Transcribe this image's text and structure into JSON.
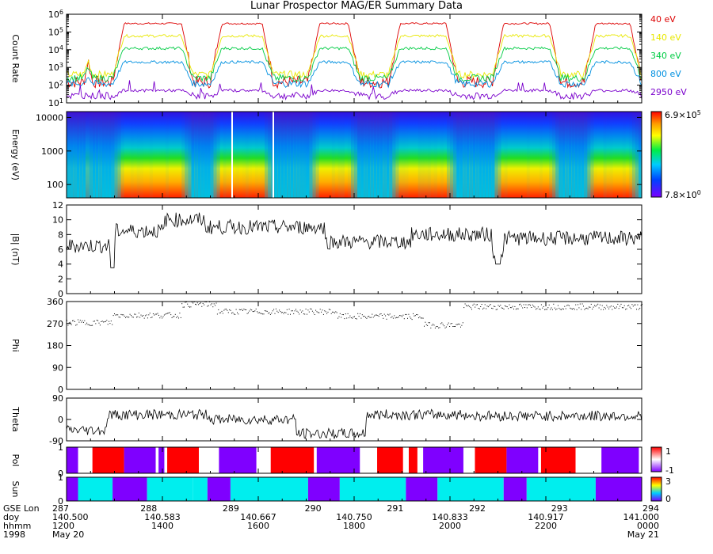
{
  "title": "Lunar Prospector MAG/ER Summary Data",
  "x_rows": [
    {
      "label": "GSE Lon",
      "values": [
        "287",
        "288",
        "289",
        "290",
        "291",
        "292",
        "293",
        "294"
      ]
    },
    {
      "label": "doy",
      "values": [
        "140.500",
        "140.583",
        "140.667",
        "140.750",
        "140.833",
        "140.917",
        "141.000"
      ]
    },
    {
      "label": "hhmm",
      "values": [
        "1200",
        "1400",
        "1600",
        "1800",
        "2000",
        "2200",
        "0000"
      ]
    },
    {
      "label": "1998",
      "values": [
        "May 20",
        "May 21"
      ]
    }
  ],
  "chart_data": [
    {
      "type": "line",
      "name": "count-rate",
      "ylabel": "Count Rate",
      "yscale": "log",
      "ylim": [
        10,
        1000000
      ],
      "yticks": [
        "10^1",
        "10^2",
        "10^3",
        "10^4",
        "10^5",
        "10^6"
      ],
      "series": [
        {
          "name": "40 eV",
          "color": "#dd0000",
          "high": 300000,
          "low": 150
        },
        {
          "name": "140 eV",
          "color": "#e8e800",
          "high": 60000,
          "low": 400
        },
        {
          "name": "340 eV",
          "color": "#00cc44",
          "high": 12000,
          "low": 250
        },
        {
          "name": "800 eV",
          "color": "#0090e0",
          "high": 2000,
          "low": 120
        },
        {
          "name": "2950 eV",
          "color": "#7a00cc",
          "high": 50,
          "low": 25
        }
      ]
    },
    {
      "type": "heatmap",
      "name": "energy-spectrogram",
      "ylabel": "Energy (eV)",
      "yscale": "log",
      "ylim": [
        40,
        15000
      ],
      "yticks": [
        "100",
        "1000",
        "10000"
      ],
      "colorbar": {
        "max": "6.9×10^5",
        "min": "7.8×10^0"
      }
    },
    {
      "type": "line",
      "name": "b-magnitude",
      "ylabel": "|B| (nT)",
      "ylim": [
        0,
        12
      ],
      "yticks": [
        "0",
        "2",
        "4",
        "6",
        "8",
        "10",
        "12"
      ]
    },
    {
      "type": "scatter",
      "name": "phi",
      "ylabel": "Phi",
      "ylim": [
        0,
        360
      ],
      "yticks": [
        "0",
        "90",
        "180",
        "270",
        "360"
      ]
    },
    {
      "type": "line",
      "name": "theta",
      "ylabel": "Theta",
      "ylim": [
        -90,
        90
      ],
      "yticks": [
        "-90",
        "0",
        "90"
      ]
    },
    {
      "type": "bar",
      "name": "pol",
      "ylabel": "Pol",
      "ylim": [
        0,
        1
      ],
      "yticks": [
        "0",
        "1"
      ],
      "colorbar": {
        "max": "1",
        "min": "-1"
      }
    },
    {
      "type": "bar",
      "name": "sun",
      "ylabel": "Sun",
      "ylim": [
        0,
        1
      ],
      "yticks": [
        "0",
        "1"
      ],
      "colorbar": {
        "max": "3",
        "min": "0"
      }
    }
  ],
  "colors": {
    "spectrogram_low": "#7a00cc",
    "spectrogram_high": "#ee2200",
    "pol_positive": "#ff0000",
    "pol_negative": "#7f00ff",
    "sun_lit": "#00eeee",
    "sun_shadow": "#7f00ff"
  }
}
